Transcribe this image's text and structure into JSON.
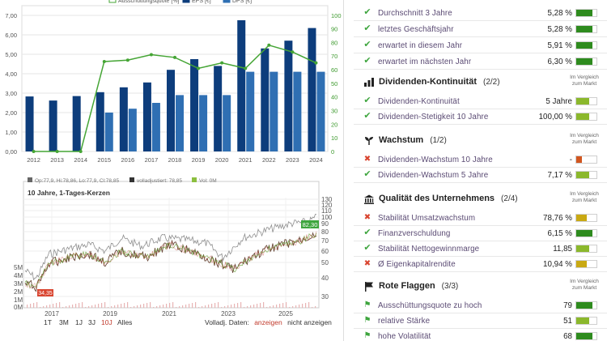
{
  "eps_chart": {
    "legend": [
      "Ausschüttungsquote [%]",
      "EPS [€]",
      "DPS [€]"
    ],
    "chart_data": {
      "type": "bar",
      "categories": [
        "2012",
        "2013",
        "2014",
        "2015",
        "2016",
        "2017",
        "2018",
        "2019",
        "2020",
        "2021",
        "2022",
        "2023",
        "2024"
      ],
      "series": [
        {
          "name": "EPS [€]",
          "values": [
            2.83,
            2.62,
            2.85,
            3.05,
            3.3,
            3.55,
            4.2,
            4.75,
            4.4,
            6.75,
            5.3,
            5.7,
            6.35
          ]
        },
        {
          "name": "DPS [€]",
          "values": [
            null,
            null,
            null,
            2.0,
            2.2,
            2.5,
            2.9,
            2.9,
            2.9,
            4.1,
            4.1,
            4.1,
            4.1
          ]
        },
        {
          "name": "Ausschüttungsquote [%]",
          "values": [
            0,
            0,
            0,
            66,
            67,
            71,
            69,
            61,
            65,
            61,
            78,
            73,
            65
          ]
        }
      ],
      "yleft_ticks": [
        "0,00",
        "1,00",
        "2,00",
        "3,00",
        "4,00",
        "5,00",
        "6,00",
        "7,00"
      ],
      "yright_ticks": [
        "0",
        "10",
        "20",
        "30",
        "40",
        "50",
        "60",
        "70",
        "80",
        "90",
        "100"
      ],
      "ylim_left": [
        0,
        7.5
      ],
      "ylim_right": [
        0,
        107
      ],
      "colors": {
        "eps": "#0d3d7c",
        "dps": "#2f6fb3",
        "quote": "#45a535"
      }
    }
  },
  "price_chart": {
    "legend": [
      "Op:77,9, Hi:78,86, Lo:77,9, Cl:78,85",
      "volladjustiert: 78,85",
      "Vol: 0M"
    ],
    "subtitle": "10 Jahre, 1-Tages-Kerzen",
    "price_label": "82,30",
    "low_label": "34,35",
    "volume_ticks": [
      "5M",
      "4M",
      "3M",
      "2M",
      "1M",
      "0M"
    ],
    "price_ticks": [
      "130",
      "120",
      "110",
      "100",
      "90",
      "80",
      "70",
      "60",
      "50",
      "40",
      "30"
    ],
    "x_ticks": [
      "2017",
      "2019",
      "2021",
      "2023",
      "2025"
    ]
  },
  "ranges": {
    "buttons": [
      "1T",
      "3M",
      "1J",
      "3J",
      "10J",
      "Alles"
    ],
    "active": "10J",
    "volume_label": "Volladj. Daten:",
    "show": "anzeigen",
    "hide": "nicht anzeigen"
  },
  "right": {
    "yield_rows": [
      {
        "label": "Durchschnitt 3 Jahre",
        "value": "5,28 %",
        "fill": 0.78,
        "color": "#2e8b1e"
      },
      {
        "label": "letztes Geschäftsjahr",
        "value": "5,28 %",
        "fill": 0.78,
        "color": "#2e8b1e"
      },
      {
        "label": "erwartet in diesem Jahr",
        "value": "5,91 %",
        "fill": 0.78,
        "color": "#2e8b1e"
      },
      {
        "label": "erwartet im nächsten Jahr",
        "value": "6,30 %",
        "fill": 0.78,
        "color": "#2e8b1e"
      }
    ],
    "sections": [
      {
        "title": "Dividenden-Kontinuität",
        "count": "(2/2)",
        "icon": "chart-icon",
        "compare": "Im Vergleich zum Markt",
        "rows": [
          {
            "mark": "ok",
            "label": "Dividenden-Kontinuität",
            "value": "5 Jahre",
            "fill": 0.62,
            "color": "#8bb82c"
          },
          {
            "mark": "ok",
            "label": "Dividenden-Stetigkeit 10 Jahre",
            "value": "100,00 %",
            "fill": 0.62,
            "color": "#8bb82c"
          }
        ]
      },
      {
        "title": "Wachstum",
        "count": "(1/2)",
        "icon": "sprout-icon",
        "compare": "Im Vergleich zum Markt",
        "rows": [
          {
            "mark": "no",
            "label": "Dividenden-Wachstum 10 Jahre",
            "value": "-",
            "fill": 0.28,
            "color": "#d2561f"
          },
          {
            "mark": "ok",
            "label": "Dividenden-Wachstum 5 Jahre",
            "value": "7,17 %",
            "fill": 0.62,
            "color": "#8bb82c"
          }
        ]
      },
      {
        "title": "Qualität des Unternehmens",
        "count": "(2/4)",
        "icon": "bank-icon",
        "compare": "Im Vergleich zum Markt",
        "rows": [
          {
            "mark": "no",
            "label": "Stabilität Umsatzwachstum",
            "value": "78,76 %",
            "fill": 0.5,
            "color": "#c9a913"
          },
          {
            "mark": "ok",
            "label": "Finanzverschuldung",
            "value": "6,15 %",
            "fill": 0.78,
            "color": "#2e8b1e"
          },
          {
            "mark": "ok",
            "label": "Stabilität Nettogewinnmarge",
            "value": "11,85",
            "fill": 0.62,
            "color": "#8bb82c"
          },
          {
            "mark": "no",
            "label": "Ø Eigenkapitalrendite",
            "value": "10,94 %",
            "fill": 0.5,
            "color": "#c9a913"
          }
        ]
      },
      {
        "title": "Rote Flaggen",
        "count": "(3/3)",
        "icon": "flag-icon",
        "compare": "Im Vergleich zum Markt",
        "rows": [
          {
            "mark": "flag",
            "label": "Ausschüttungsquote zu hoch",
            "value": "79",
            "fill": 0.78,
            "color": "#2e8b1e"
          },
          {
            "mark": "flag",
            "label": "relative Stärke",
            "value": "51",
            "fill": 0.62,
            "color": "#8bb82c"
          },
          {
            "mark": "flag",
            "label": "hohe Volatilität",
            "value": "68",
            "fill": 0.78,
            "color": "#2e8b1e"
          }
        ]
      }
    ]
  }
}
